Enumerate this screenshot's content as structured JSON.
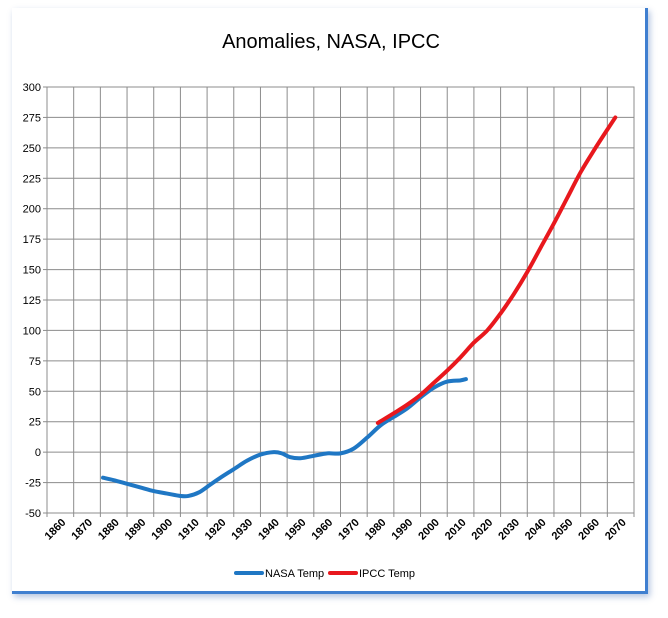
{
  "chart_data": {
    "type": "line",
    "title": "Anomalies, NASA, IPCC",
    "xlabel": "",
    "ylabel": "",
    "xlim": [
      1860,
      2070
    ],
    "ylim": [
      -50,
      300
    ],
    "x_ticks": [
      "1860",
      "1870",
      "1880",
      "1890",
      "1900",
      "1910",
      "1920",
      "1930",
      "1940",
      "1950",
      "1960",
      "1970",
      "1980",
      "1990",
      "2000",
      "2010",
      "2020",
      "2030",
      "2040",
      "2050",
      "2060",
      "2070"
    ],
    "y_ticks": [
      "300",
      "275",
      "250",
      "225",
      "200",
      "175",
      "150",
      "125",
      "100",
      "75",
      "50",
      "25",
      "0",
      "-25",
      "-50"
    ],
    "grid": true,
    "legend_position": "bottom",
    "series": [
      {
        "name": "NASA Temp",
        "color": "#1f77c4",
        "x": [
          1876,
          1880,
          1885,
          1890,
          1895,
          1900,
          1905,
          1908,
          1912,
          1916,
          1920,
          1925,
          1930,
          1935,
          1940,
          1943,
          1946,
          1950,
          1955,
          1960,
          1965,
          1970,
          1975,
          1980,
          1985,
          1990,
          1995,
          2000,
          2005,
          2010,
          2012
        ],
        "y": [
          -21,
          -23,
          -26,
          -29,
          -32,
          -34,
          -36,
          -36,
          -33,
          -27,
          -21,
          -14,
          -7,
          -2,
          0,
          -1,
          -4,
          -5,
          -3,
          -1,
          -1,
          3,
          12,
          22,
          29,
          36,
          45,
          53,
          58,
          59,
          60
        ]
      },
      {
        "name": "IPCC Temp",
        "color": "#e8181d",
        "x": [
          1979,
          1985,
          1990,
          1995,
          2000,
          2005,
          2010,
          2015,
          2020,
          2025,
          2030,
          2035,
          2040,
          2045,
          2050,
          2055,
          2060,
          2065,
          2068
        ],
        "y": [
          24,
          32,
          39,
          47,
          57,
          67,
          78,
          90,
          100,
          114,
          130,
          148,
          168,
          188,
          209,
          230,
          248,
          265,
          275
        ]
      }
    ]
  }
}
